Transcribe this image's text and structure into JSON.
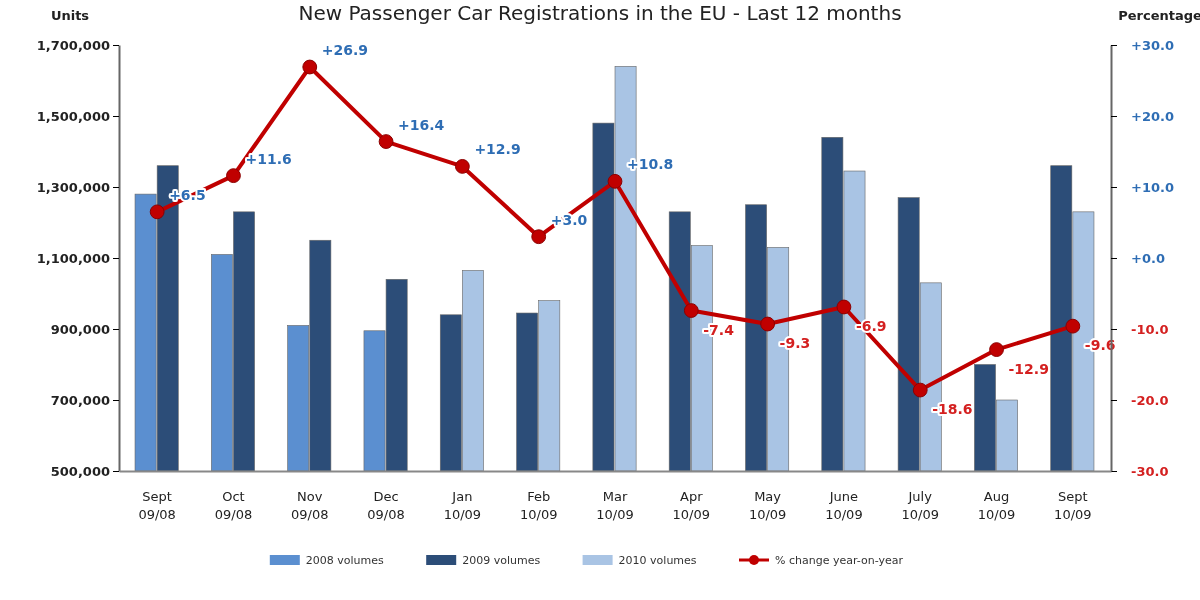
{
  "chart_data": {
    "type": "bar",
    "title": "New Passenger Car Registrations in the EU - Last 12 months",
    "ylabel": "Units",
    "y2label": "Percentage",
    "categories": [
      "Sept 09/08",
      "Oct 09/08",
      "Nov 09/08",
      "Dec 09/08",
      "Jan 10/09",
      "Feb 10/09",
      "Mar 10/09",
      "Apr 10/09",
      "May 10/09",
      "June 10/09",
      "July 10/09",
      "Aug 10/09",
      "Sept 10/09"
    ],
    "series": [
      {
        "name": "2008 volumes",
        "color": "#5b8fd0",
        "values": [
          1280000,
          1110000,
          910000,
          895000,
          null,
          null,
          null,
          null,
          null,
          null,
          null,
          null,
          null
        ]
      },
      {
        "name": "2009 volumes",
        "color": "#2c4d78",
        "values": [
          1360000,
          1230000,
          1150000,
          1040000,
          940000,
          945000,
          1480000,
          1230000,
          1250000,
          1440000,
          1270000,
          800000,
          1360000
        ]
      },
      {
        "name": "2010 volumes",
        "color": "#a9c4e4",
        "values": [
          null,
          null,
          null,
          null,
          1065000,
          980000,
          1640000,
          1135000,
          1130000,
          1345000,
          1030000,
          700000,
          1230000
        ]
      },
      {
        "name": "% change year-on-year",
        "type": "line",
        "axis": "y2",
        "color": "#c00000",
        "marker": "circle",
        "line_style": "solid",
        "values": [
          6.5,
          11.6,
          26.9,
          16.4,
          12.9,
          3.0,
          10.8,
          -7.4,
          -9.3,
          -6.9,
          -18.6,
          -12.9,
          -9.6
        ],
        "value_labels": [
          "+6.5",
          "+11.6",
          "+26.9",
          "+16.4",
          "+12.9",
          "+3.0",
          "+10.8",
          "-7.4",
          "-9.3",
          "-6.9",
          "-18.6",
          "-12.9",
          "-9.6"
        ]
      }
    ],
    "ylim": [
      500000,
      1700000
    ],
    "yticks": [
      {
        "value": 500000,
        "label": "500,000"
      },
      {
        "value": 700000,
        "label": "700,000"
      },
      {
        "value": 900000,
        "label": "900,000"
      },
      {
        "value": 1100000,
        "label": "1,100,000"
      },
      {
        "value": 1300000,
        "label": "1,300,000"
      },
      {
        "value": 1500000,
        "label": "1,500,000"
      },
      {
        "value": 1700000,
        "label": "1,700,000"
      }
    ],
    "y2lim": [
      -30,
      30
    ],
    "y2ticks": [
      {
        "value": -30,
        "label": "-30.0"
      },
      {
        "value": -20,
        "label": "-20.0"
      },
      {
        "value": -10,
        "label": "-10.0"
      },
      {
        "value": 0,
        "label": "+0.0"
      },
      {
        "value": 10,
        "label": "+10.0"
      },
      {
        "value": 20,
        "label": "+20.0"
      },
      {
        "value": 30,
        "label": "+30.0"
      }
    ],
    "grid": false,
    "legend": "bottom"
  }
}
